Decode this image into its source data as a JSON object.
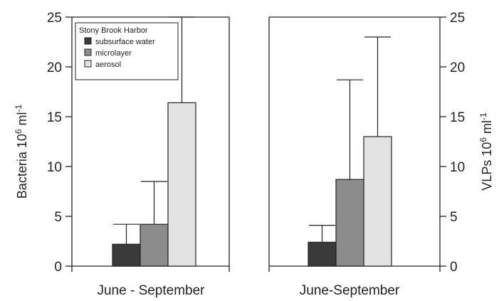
{
  "chart_data": [
    {
      "type": "bar",
      "panel": "left",
      "title": "",
      "ylabel": "Bacteria 10",
      "ylabel_sup": "6",
      "ylabel_unit": " ml",
      "ylabel_unit_sup": "-1",
      "yaxis_side": "left",
      "ylim": [
        0,
        25
      ],
      "yticks": [
        "0",
        "5",
        "10",
        "15",
        "20",
        "25"
      ],
      "category": "June - September",
      "legend": {
        "title": "Stony Brook Harbor",
        "entries": [
          "subsurface water",
          "microlayer",
          "aerosol"
        ],
        "placement": "top-left"
      },
      "series": [
        {
          "name": "subsurface water",
          "value": 2.2,
          "error": 4.2,
          "color": "#3a3a3a"
        },
        {
          "name": "microlayer",
          "value": 4.2,
          "error": 8.5,
          "color": "#8c8c8c"
        },
        {
          "name": "aerosol",
          "value": 16.4,
          "error": 25,
          "color": "#e3e3e3"
        }
      ]
    },
    {
      "type": "bar",
      "panel": "right",
      "title": "",
      "ylabel": "VLPs 10",
      "ylabel_sup": "6",
      "ylabel_unit": " ml",
      "ylabel_unit_sup": "-1",
      "yaxis_side": "right",
      "ylim": [
        0,
        25
      ],
      "yticks": [
        "0",
        "5",
        "10",
        "15",
        "20",
        "25"
      ],
      "category": "June-September",
      "series": [
        {
          "name": "subsurface water",
          "value": 2.4,
          "error": 4.1,
          "color": "#3a3a3a"
        },
        {
          "name": "microlayer",
          "value": 8.7,
          "error": 18.7,
          "color": "#8c8c8c"
        },
        {
          "name": "aerosol",
          "value": 13.0,
          "error": 23.0,
          "color": "#e3e3e3"
        }
      ]
    }
  ]
}
